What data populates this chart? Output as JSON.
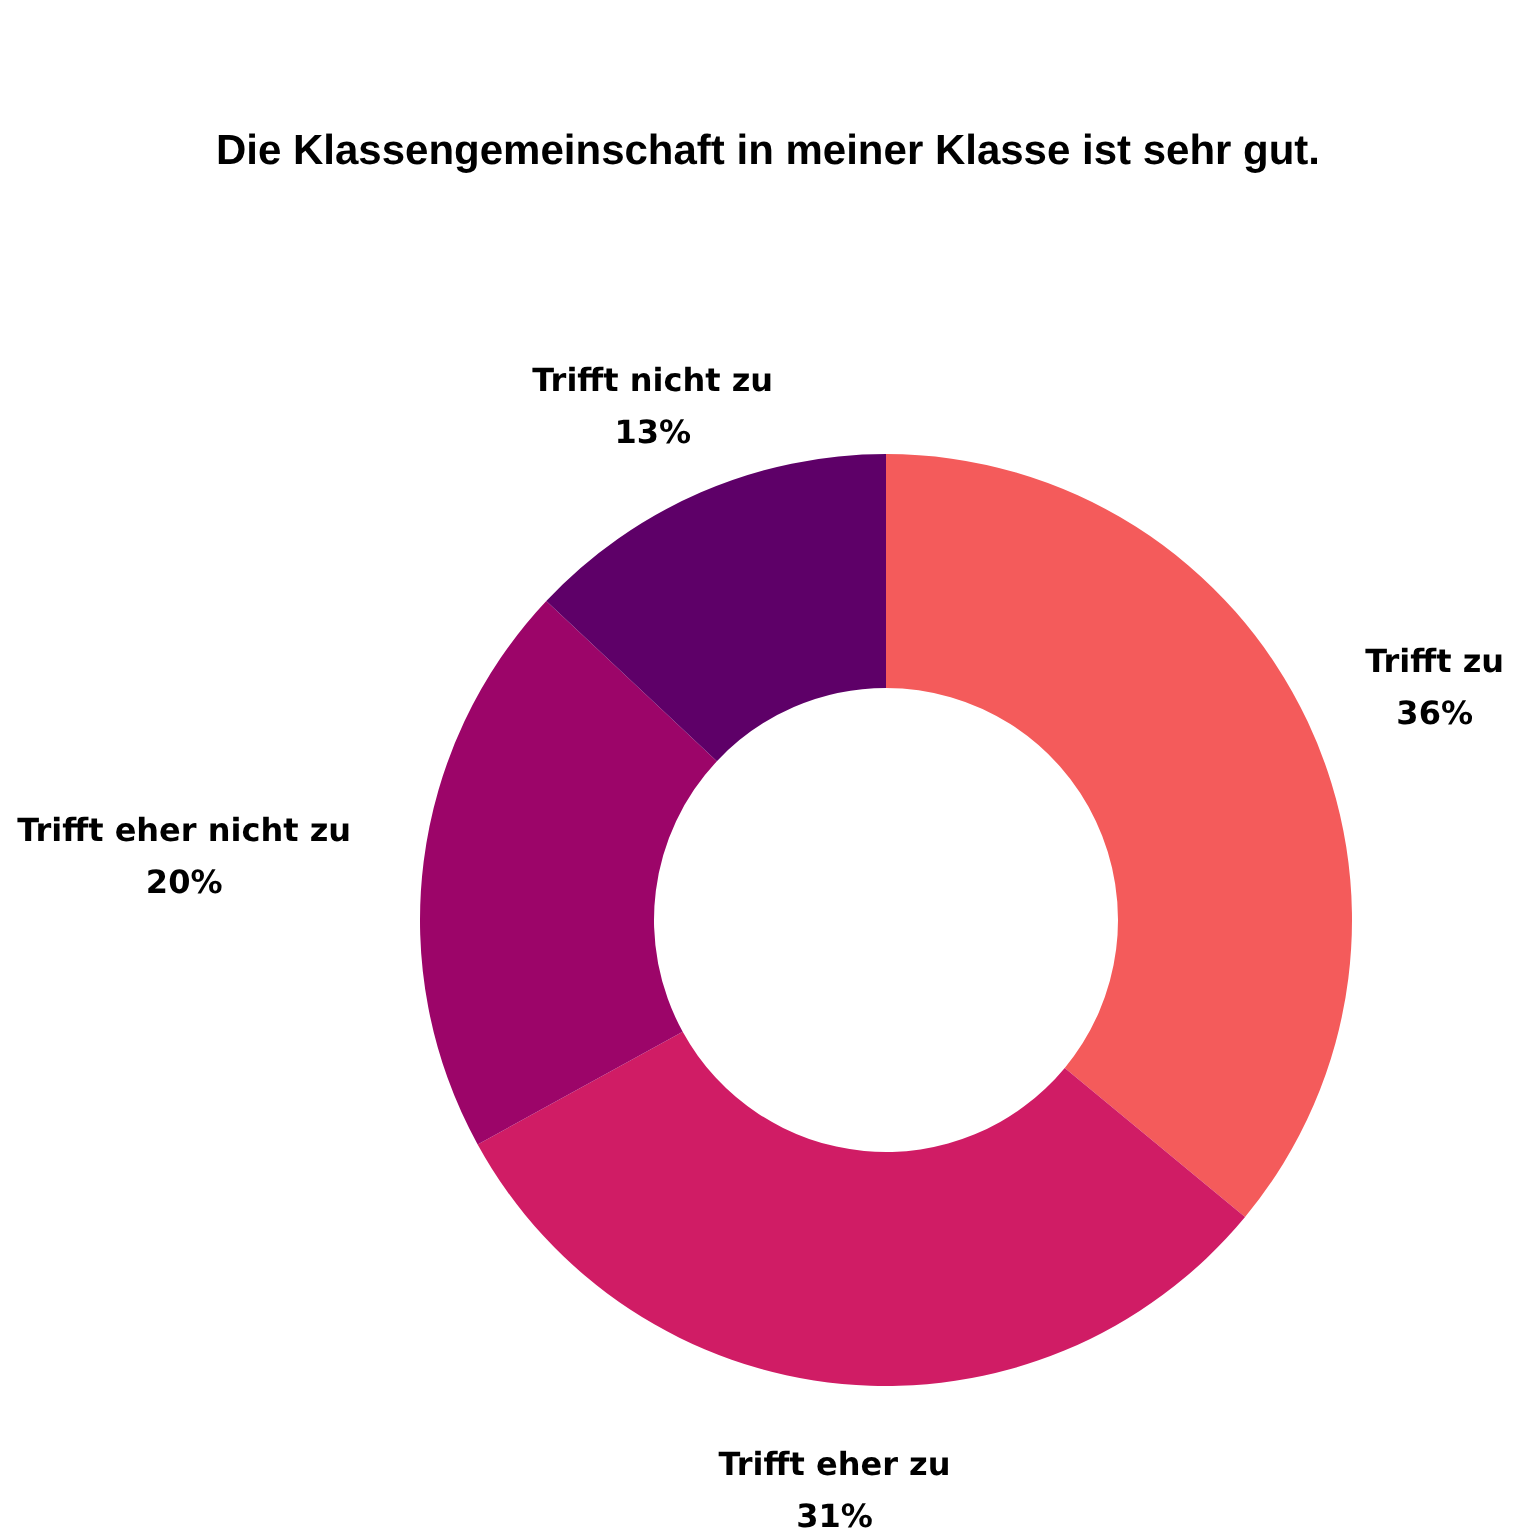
{
  "chart_data": {
    "type": "donut",
    "title": "Die Klassengemeinschaft in meiner Klasse ist sehr gut.",
    "categories": [
      "Trifft zu",
      "Trifft eher zu",
      "Trifft eher nicht zu",
      "Trifft nicht zu"
    ],
    "values": [
      36,
      31,
      20,
      13
    ],
    "value_labels": [
      "36%",
      "31%",
      "20%",
      "13%"
    ],
    "colors": [
      "#f45b5b",
      "#d01c65",
      "#9c0569",
      "#5e0068"
    ]
  }
}
